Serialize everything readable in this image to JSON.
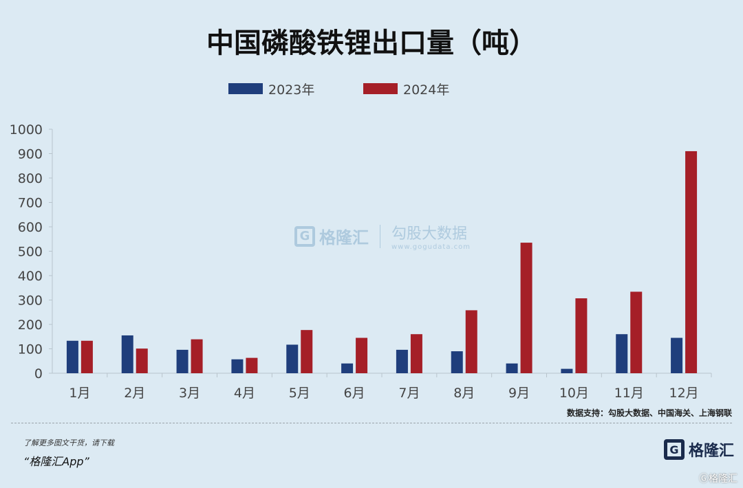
{
  "chart_data": {
    "type": "bar",
    "title": "中国磷酸铁锂出口量（吨）",
    "categories": [
      "1月",
      "2月",
      "3月",
      "4月",
      "5月",
      "6月",
      "7月",
      "8月",
      "9月",
      "10月",
      "11月",
      "12月"
    ],
    "series": [
      {
        "name": "2023年",
        "color": "#1f3e7c",
        "values": [
          133,
          155,
          96,
          57,
          117,
          40,
          96,
          90,
          40,
          18,
          160,
          145
        ]
      },
      {
        "name": "2024年",
        "color": "#a51f27",
        "values": [
          133,
          101,
          139,
          63,
          177,
          145,
          160,
          258,
          535,
          307,
          334,
          910
        ]
      }
    ],
    "ylim": [
      0,
      1000
    ],
    "yticks": [
      0,
      100,
      200,
      300,
      400,
      500,
      600,
      700,
      800,
      900,
      1000
    ],
    "grid": false,
    "legend_position": "top-center"
  },
  "watermark": {
    "brand": "格隆汇",
    "right_title": "勾股大数据",
    "right_url": "www.gogudata.com"
  },
  "source_text": "数据支持：勾股大数据、中国海关、上海钢联",
  "footer": {
    "line1": "了解更多图文干货，请下载",
    "line2": "“格隆汇App”"
  },
  "brand_logo": {
    "text": "格隆汇",
    "icon": "G"
  },
  "corner_mark": "Ⓖ格隆汇"
}
